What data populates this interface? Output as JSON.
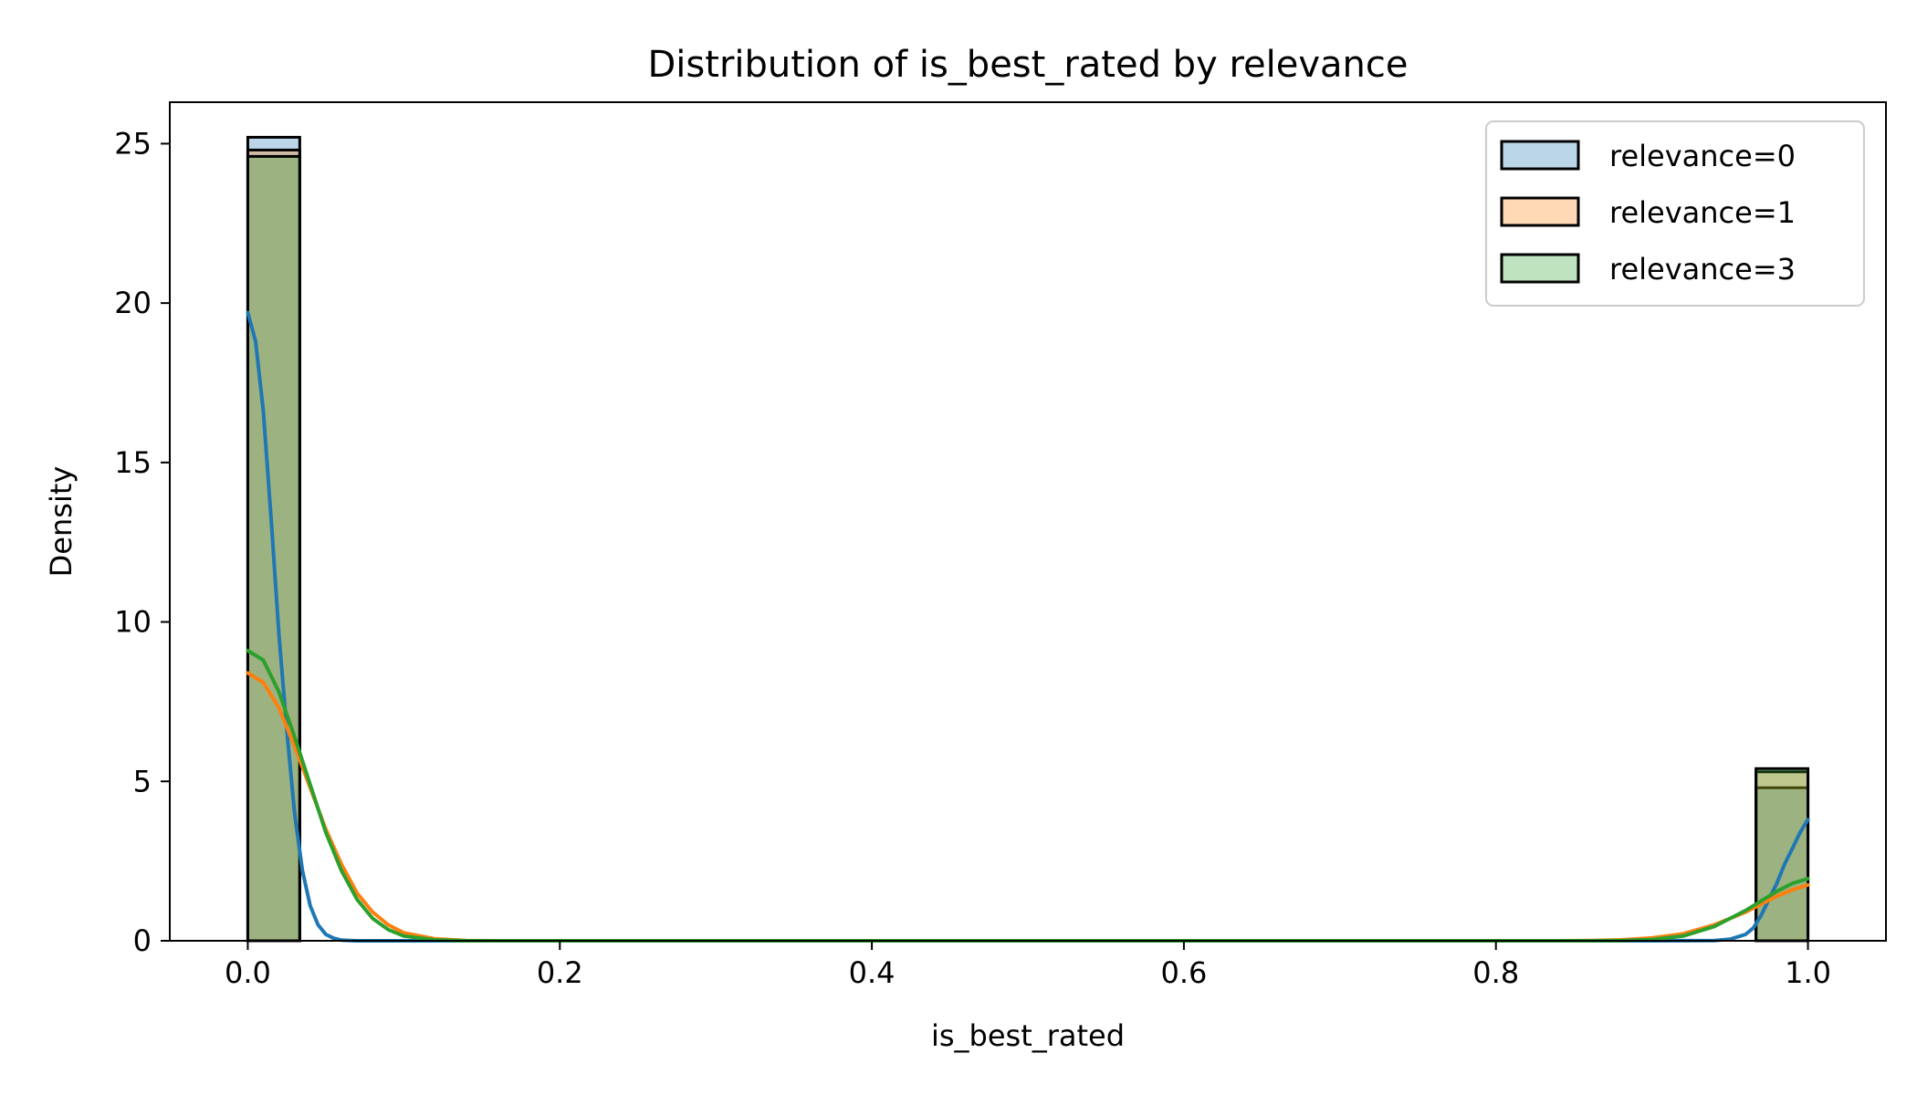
{
  "chart_data": {
    "type": "histogram",
    "title": "Distribution of is_best_rated by relevance",
    "xlabel": "is_best_rated",
    "ylabel": "Density",
    "xlim": [
      -0.05,
      1.05
    ],
    "ylim": [
      0,
      26.3
    ],
    "xticks": [
      0.0,
      0.2,
      0.4,
      0.6,
      0.8,
      1.0
    ],
    "xtick_labels": [
      "0.0",
      "0.2",
      "0.4",
      "0.6",
      "0.8",
      "1.0"
    ],
    "yticks": [
      0,
      5,
      10,
      15,
      20,
      25
    ],
    "ytick_labels": [
      "0",
      "5",
      "10",
      "15",
      "20",
      "25"
    ],
    "grid": false,
    "legend_position": "upper right",
    "series": [
      {
        "name": "relevance=0",
        "color": "#1f77b4",
        "fill": "#bcd3e8",
        "bars": [
          {
            "x0": 0.0,
            "x1": 0.0333,
            "density": 25.2
          },
          {
            "x0": 0.9667,
            "x1": 1.0,
            "density": 4.8
          }
        ],
        "kde": [
          [
            0.0,
            19.7
          ],
          [
            0.005,
            18.8
          ],
          [
            0.01,
            16.6
          ],
          [
            0.015,
            13.2
          ],
          [
            0.02,
            9.6
          ],
          [
            0.025,
            6.6
          ],
          [
            0.03,
            4.0
          ],
          [
            0.035,
            2.2
          ],
          [
            0.04,
            1.1
          ],
          [
            0.045,
            0.5
          ],
          [
            0.05,
            0.2
          ],
          [
            0.055,
            0.08
          ],
          [
            0.06,
            0.02
          ],
          [
            0.07,
            0.0
          ],
          [
            0.1,
            0.0
          ],
          [
            0.3,
            0.0
          ],
          [
            0.5,
            0.0
          ],
          [
            0.7,
            0.0
          ],
          [
            0.9,
            0.0
          ],
          [
            0.94,
            0.01
          ],
          [
            0.95,
            0.05
          ],
          [
            0.96,
            0.2
          ],
          [
            0.965,
            0.4
          ],
          [
            0.97,
            0.8
          ],
          [
            0.975,
            1.3
          ],
          [
            0.98,
            1.8
          ],
          [
            0.985,
            2.4
          ],
          [
            0.99,
            2.9
          ],
          [
            0.995,
            3.4
          ],
          [
            1.0,
            3.8
          ]
        ]
      },
      {
        "name": "relevance=1",
        "color": "#ff7f0e",
        "fill": "#fdd5b3",
        "bars": [
          {
            "x0": 0.0,
            "x1": 0.0333,
            "density": 24.8
          },
          {
            "x0": 0.9667,
            "x1": 1.0,
            "density": 5.3
          }
        ],
        "kde": [
          [
            0.0,
            8.4
          ],
          [
            0.01,
            8.1
          ],
          [
            0.02,
            7.3
          ],
          [
            0.03,
            6.1
          ],
          [
            0.04,
            4.8
          ],
          [
            0.05,
            3.5
          ],
          [
            0.06,
            2.4
          ],
          [
            0.07,
            1.5
          ],
          [
            0.08,
            0.9
          ],
          [
            0.09,
            0.5
          ],
          [
            0.1,
            0.25
          ],
          [
            0.12,
            0.06
          ],
          [
            0.14,
            0.01
          ],
          [
            0.16,
            0.0
          ],
          [
            0.4,
            0.0
          ],
          [
            0.6,
            0.0
          ],
          [
            0.84,
            0.0
          ],
          [
            0.86,
            0.01
          ],
          [
            0.88,
            0.03
          ],
          [
            0.9,
            0.09
          ],
          [
            0.92,
            0.22
          ],
          [
            0.94,
            0.5
          ],
          [
            0.96,
            0.9
          ],
          [
            0.97,
            1.15
          ],
          [
            0.98,
            1.4
          ],
          [
            0.99,
            1.6
          ],
          [
            1.0,
            1.75
          ]
        ]
      },
      {
        "name": "relevance=3",
        "color": "#2ca02c",
        "fill": "#c1e3bd",
        "bars": [
          {
            "x0": 0.0,
            "x1": 0.0333,
            "density": 24.6
          },
          {
            "x0": 0.9667,
            "x1": 1.0,
            "density": 5.4
          }
        ],
        "kde": [
          [
            0.0,
            9.1
          ],
          [
            0.01,
            8.8
          ],
          [
            0.02,
            7.8
          ],
          [
            0.03,
            6.4
          ],
          [
            0.04,
            4.9
          ],
          [
            0.05,
            3.4
          ],
          [
            0.06,
            2.2
          ],
          [
            0.07,
            1.3
          ],
          [
            0.08,
            0.7
          ],
          [
            0.09,
            0.35
          ],
          [
            0.1,
            0.15
          ],
          [
            0.12,
            0.03
          ],
          [
            0.14,
            0.0
          ],
          [
            0.4,
            0.0
          ],
          [
            0.6,
            0.0
          ],
          [
            0.86,
            0.0
          ],
          [
            0.88,
            0.01
          ],
          [
            0.9,
            0.04
          ],
          [
            0.92,
            0.15
          ],
          [
            0.94,
            0.45
          ],
          [
            0.96,
            0.95
          ],
          [
            0.97,
            1.25
          ],
          [
            0.98,
            1.55
          ],
          [
            0.99,
            1.8
          ],
          [
            1.0,
            1.95
          ]
        ]
      }
    ]
  }
}
